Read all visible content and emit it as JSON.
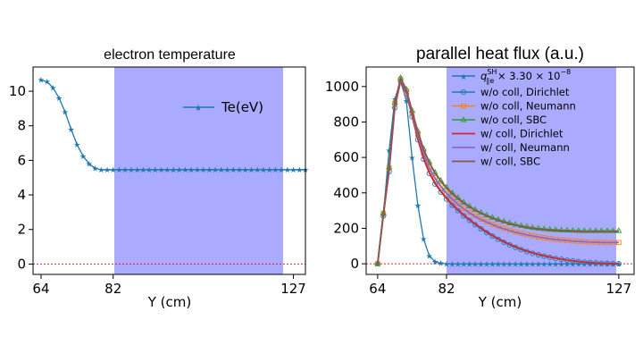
{
  "chart_data": [
    {
      "type": "line",
      "title": "electron temperature",
      "xlabel": "Y (cm)",
      "ylabel": "",
      "xlim": [
        62,
        130
      ],
      "ylim": [
        -0.6,
        11.4
      ],
      "xticks": [
        "64",
        "82",
        "127"
      ],
      "yticks": [
        "0",
        "2",
        "4",
        "6",
        "8",
        "10"
      ],
      "shaded_region_x": [
        82,
        127
      ],
      "shade_color": "#aaaaff",
      "reference_line_y": 0,
      "reference_line_color": "#d62728",
      "legend_position": "upper-right",
      "series": [
        {
          "name": "Te(eV)",
          "color": "#1f77b4",
          "marker": "star",
          "x": [
            64,
            65.5,
            67,
            68.5,
            70,
            71.5,
            73,
            74.5,
            76,
            77.5,
            79,
            80.5,
            82,
            83.5,
            85,
            86.5,
            88,
            89.5,
            91,
            92.5,
            94,
            95.5,
            97,
            98.5,
            100,
            101.5,
            103,
            104.5,
            106,
            107.5,
            109,
            110.5,
            112,
            113.5,
            115,
            116.5,
            118,
            119.5,
            121,
            122.5,
            124,
            125.5,
            127,
            128.5,
            130
          ],
          "y": [
            10.65,
            10.55,
            10.2,
            9.6,
            8.8,
            7.8,
            6.9,
            6.25,
            5.8,
            5.55,
            5.45,
            5.45,
            5.45,
            5.45,
            5.45,
            5.45,
            5.45,
            5.45,
            5.45,
            5.45,
            5.45,
            5.45,
            5.45,
            5.45,
            5.45,
            5.45,
            5.45,
            5.45,
            5.45,
            5.45,
            5.45,
            5.45,
            5.45,
            5.45,
            5.45,
            5.45,
            5.45,
            5.45,
            5.45,
            5.45,
            5.45,
            5.45,
            5.45,
            5.45,
            5.45
          ]
        }
      ]
    },
    {
      "type": "line",
      "title": "parallel heat flux (a.u.)",
      "xlabel": "Y (cm)",
      "ylabel": "",
      "xlim": [
        61,
        131
      ],
      "ylim": [
        -60,
        1110
      ],
      "xticks": [
        "64",
        "82",
        "127"
      ],
      "yticks": [
        "0",
        "200",
        "400",
        "600",
        "800",
        "1000"
      ],
      "shaded_region_x": [
        82,
        127
      ],
      "shade_color": "#aaaaff",
      "reference_line_y": 0,
      "reference_line_color": "#d62728",
      "legend_position": "upper-right",
      "series": [
        {
          "name": "",
          "label_main": "q",
          "label_sup": "SH",
          "label_sub": "∥e",
          "label_tail": " × 3.30 × 10",
          "label_exp": "−8",
          "color": "#1f77b4",
          "marker": "star",
          "x": [
            64,
            65.5,
            67,
            68.5,
            70,
            71.5,
            73,
            74.5,
            76,
            77.5,
            79,
            80.5,
            82,
            83.5,
            85,
            86.5,
            88,
            89.5,
            91,
            92.5,
            94,
            95.5,
            97,
            98.5,
            100,
            101.5,
            103,
            104.5,
            106,
            107.5,
            109,
            110.5,
            112,
            113.5,
            115,
            116.5,
            118,
            119.5,
            121,
            122.5,
            124,
            125.5,
            127
          ],
          "y": [
            0,
            280,
            640,
            930,
            1030,
            920,
            600,
            330,
            140,
            45,
            12,
            3,
            0,
            0,
            0,
            0,
            0,
            0,
            0,
            0,
            0,
            0,
            0,
            0,
            0,
            0,
            0,
            0,
            0,
            0,
            0,
            0,
            0,
            0,
            0,
            0,
            0,
            0,
            0,
            0,
            0,
            0,
            0
          ]
        },
        {
          "name": "w/o coll, Dirichlet",
          "color": "#1f77b4",
          "marker": "circle",
          "x": [
            64,
            65.5,
            67,
            68.5,
            70,
            71.5,
            73,
            74.5,
            76,
            77.5,
            79,
            80.5,
            82,
            83.5,
            85,
            86.5,
            88,
            89.5,
            91,
            92.5,
            94,
            95.5,
            97,
            98.5,
            100,
            101.5,
            103,
            104.5,
            106,
            107.5,
            109,
            110.5,
            112,
            113.5,
            115,
            116.5,
            118,
            119.5,
            121,
            122.5,
            124,
            125.5,
            127
          ],
          "y": [
            0,
            270,
            520,
            880,
            1030,
            960,
            830,
            700,
            590,
            510,
            450,
            405,
            365,
            330,
            300,
            270,
            245,
            220,
            197,
            175,
            156,
            138,
            121,
            106,
            92,
            80,
            69,
            59,
            51,
            43,
            36,
            30,
            25,
            20,
            16,
            12,
            9,
            7,
            5,
            3,
            2,
            1,
            0
          ]
        },
        {
          "name": "w/o coll, Neumann",
          "color": "#ff7f0e",
          "marker": "square",
          "x": [
            64,
            65.5,
            67,
            68.5,
            70,
            71.5,
            73,
            74.5,
            76,
            77.5,
            79,
            80.5,
            82,
            83.5,
            85,
            86.5,
            88,
            89.5,
            91,
            92.5,
            94,
            95.5,
            97,
            98.5,
            100,
            101.5,
            103,
            104.5,
            106,
            107.5,
            109,
            110.5,
            112,
            113.5,
            115,
            116.5,
            118,
            119.5,
            121,
            122.5,
            124,
            125.5,
            127
          ],
          "y": [
            0,
            285,
            540,
            905,
            1040,
            975,
            850,
            730,
            625,
            545,
            485,
            440,
            400,
            367,
            338,
            312,
            290,
            270,
            252,
            237,
            223,
            210,
            199,
            189,
            180,
            172,
            165,
            158,
            152,
            147,
            142,
            138,
            135,
            132,
            129,
            127,
            125,
            123,
            122,
            121,
            120,
            120,
            120
          ]
        },
        {
          "name": "w/o coll, SBC",
          "color": "#2ca02c",
          "marker": "triangle",
          "x": [
            64,
            65.5,
            67,
            68.5,
            70,
            71.5,
            73,
            74.5,
            76,
            77.5,
            79,
            80.5,
            82,
            83.5,
            85,
            86.5,
            88,
            89.5,
            91,
            92.5,
            94,
            95.5,
            97,
            98.5,
            100,
            101.5,
            103,
            104.5,
            106,
            107.5,
            109,
            110.5,
            112,
            113.5,
            115,
            116.5,
            118,
            119.5,
            121,
            122.5,
            124,
            125.5,
            127
          ],
          "y": [
            0,
            285,
            545,
            910,
            1050,
            985,
            865,
            750,
            650,
            575,
            515,
            470,
            432,
            400,
            372,
            347,
            325,
            306,
            289,
            274,
            261,
            249,
            239,
            230,
            222,
            215,
            209,
            204,
            200,
            197,
            194,
            192,
            190,
            189,
            188,
            187,
            186,
            186,
            186,
            186,
            186,
            186,
            186
          ]
        },
        {
          "name": "w/ coll, Dirichlet",
          "color": "#d62728",
          "marker": "none",
          "x": [
            64,
            65.5,
            67,
            68.5,
            70,
            71.5,
            73,
            74.5,
            76,
            77.5,
            79,
            80.5,
            82,
            83.5,
            85,
            86.5,
            88,
            89.5,
            91,
            92.5,
            94,
            95.5,
            97,
            98.5,
            100,
            101.5,
            103,
            104.5,
            106,
            107.5,
            109,
            110.5,
            112,
            113.5,
            115,
            116.5,
            118,
            119.5,
            121,
            122.5,
            124,
            125.5,
            127
          ],
          "y": [
            0,
            275,
            525,
            885,
            1030,
            965,
            835,
            705,
            595,
            515,
            455,
            410,
            370,
            335,
            305,
            275,
            250,
            225,
            202,
            180,
            160,
            142,
            125,
            110,
            96,
            83,
            72,
            62,
            53,
            45,
            38,
            32,
            26,
            21,
            17,
            13,
            10,
            7,
            5,
            3,
            2,
            1,
            0
          ]
        },
        {
          "name": "w/ coll, Neumann",
          "color": "#9467bd",
          "marker": "none",
          "x": [
            64,
            65.5,
            67,
            68.5,
            70,
            71.5,
            73,
            74.5,
            76,
            77.5,
            79,
            80.5,
            82,
            83.5,
            85,
            86.5,
            88,
            89.5,
            91,
            92.5,
            94,
            95.5,
            97,
            98.5,
            100,
            101.5,
            103,
            104.5,
            106,
            107.5,
            109,
            110.5,
            112,
            113.5,
            115,
            116.5,
            118,
            119.5,
            121,
            122.5,
            124,
            125.5,
            127
          ],
          "y": [
            0,
            283,
            538,
            900,
            1038,
            972,
            847,
            727,
            622,
            542,
            482,
            437,
            397,
            364,
            335,
            309,
            287,
            267,
            250,
            235,
            221,
            208,
            197,
            187,
            178,
            170,
            163,
            157,
            151,
            146,
            141,
            137,
            134,
            131,
            128,
            126,
            124,
            122,
            121,
            120,
            120,
            120,
            120
          ]
        },
        {
          "name": "w/ coll, SBC",
          "color": "#8c564b",
          "marker": "none",
          "x": [
            64,
            65.5,
            67,
            68.5,
            70,
            71.5,
            73,
            74.5,
            76,
            77.5,
            79,
            80.5,
            82,
            83.5,
            85,
            86.5,
            88,
            89.5,
            91,
            92.5,
            94,
            95.5,
            97,
            98.5,
            100,
            101.5,
            103,
            104.5,
            106,
            107.5,
            109,
            110.5,
            112,
            113.5,
            115,
            116.5,
            118,
            119.5,
            121,
            122.5,
            124,
            125.5,
            127
          ],
          "y": [
            0,
            284,
            543,
            907,
            1046,
            982,
            861,
            746,
            646,
            571,
            511,
            466,
            428,
            396,
            368,
            343,
            321,
            302,
            285,
            270,
            257,
            245,
            235,
            226,
            218,
            211,
            205,
            200,
            196,
            193,
            190,
            188,
            186,
            185,
            184,
            183,
            182,
            182,
            182,
            182,
            182,
            182,
            182
          ]
        }
      ]
    }
  ]
}
